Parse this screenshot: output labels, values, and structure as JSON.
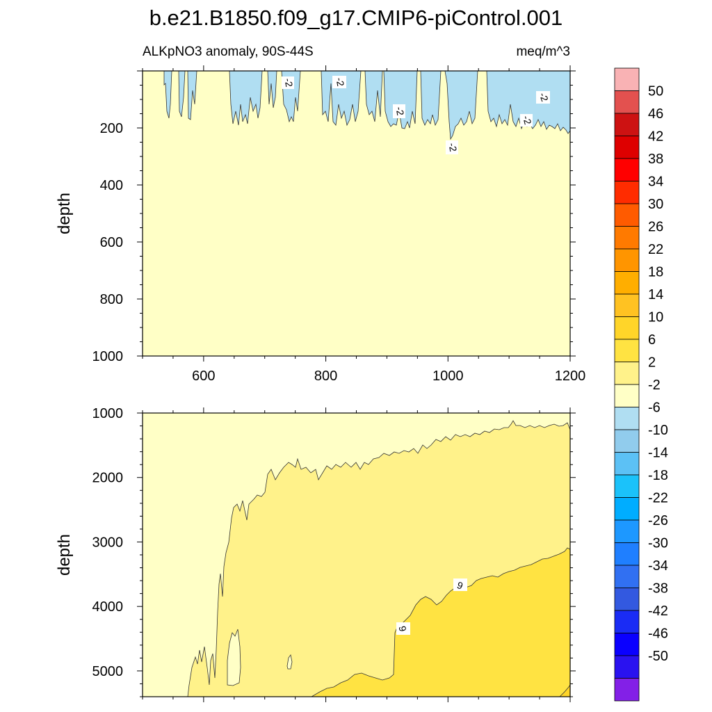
{
  "title": "b.e21.B1850.f09_g17.CMIP6-piControl.001",
  "colorbar": {
    "labels": [
      "50",
      "46",
      "42",
      "38",
      "34",
      "30",
      "26",
      "22",
      "18",
      "14",
      "10",
      "6",
      "2",
      "-2",
      "-6",
      "-10",
      "-14",
      "-18",
      "-22",
      "-26",
      "-30",
      "-34",
      "-38",
      "-42",
      "-46",
      "-50"
    ],
    "colors": [
      "#f9b2b4",
      "#e3514f",
      "#cd1212",
      "#de0000",
      "#ff0000",
      "#ff2c00",
      "#ff5b00",
      "#ff7a00",
      "#ff9500",
      "#ffae00",
      "#ffc222",
      "#ffd529",
      "#ffe342",
      "#fff28a",
      "#ffffc6",
      "#b0def2",
      "#91cced",
      "#5cc1f5",
      "#1bc2fa",
      "#00adff",
      "#1d98ff",
      "#1f7fff",
      "#3170f2",
      "#3359e0",
      "#1a2cf5",
      "#0a00ff",
      "#2a12f0",
      "#8320e7"
    ]
  },
  "chart_data": [
    {
      "type": "heatmap",
      "title": "ALKpNO3 anomaly, 90S-44S",
      "units": "meq/m^3",
      "xlabel": "",
      "ylabel": "depth",
      "xlim": [
        500,
        1200
      ],
      "ylim": [
        1000,
        0
      ],
      "xticks": [
        "600",
        "800",
        "1000",
        "1200"
      ],
      "yticks": [
        "200",
        "400",
        "600",
        "800",
        "1000"
      ],
      "contour_labels": [
        "-2",
        "-2",
        "-2",
        "-2",
        "-2",
        "-2"
      ],
      "regions": [
        {
          "range": "-2 to 2",
          "description": "background"
        },
        {
          "range": "-6 to -2",
          "description": "upper ocean patches above ~250 m"
        }
      ]
    },
    {
      "type": "heatmap",
      "title": "",
      "ylabel": "depth",
      "xlim": [
        500,
        1200
      ],
      "ylim": [
        5400,
        1000
      ],
      "yticks": [
        "1000",
        "2000",
        "3000",
        "4000",
        "5000"
      ],
      "contour_labels": [
        "6",
        "6"
      ],
      "regions": [
        {
          "range": "-2 to 2",
          "description": "background"
        },
        {
          "range": "2 to 6",
          "description": "deep water"
        },
        {
          "range": "6 to 10",
          "description": "bottom water after ~915"
        }
      ]
    }
  ]
}
